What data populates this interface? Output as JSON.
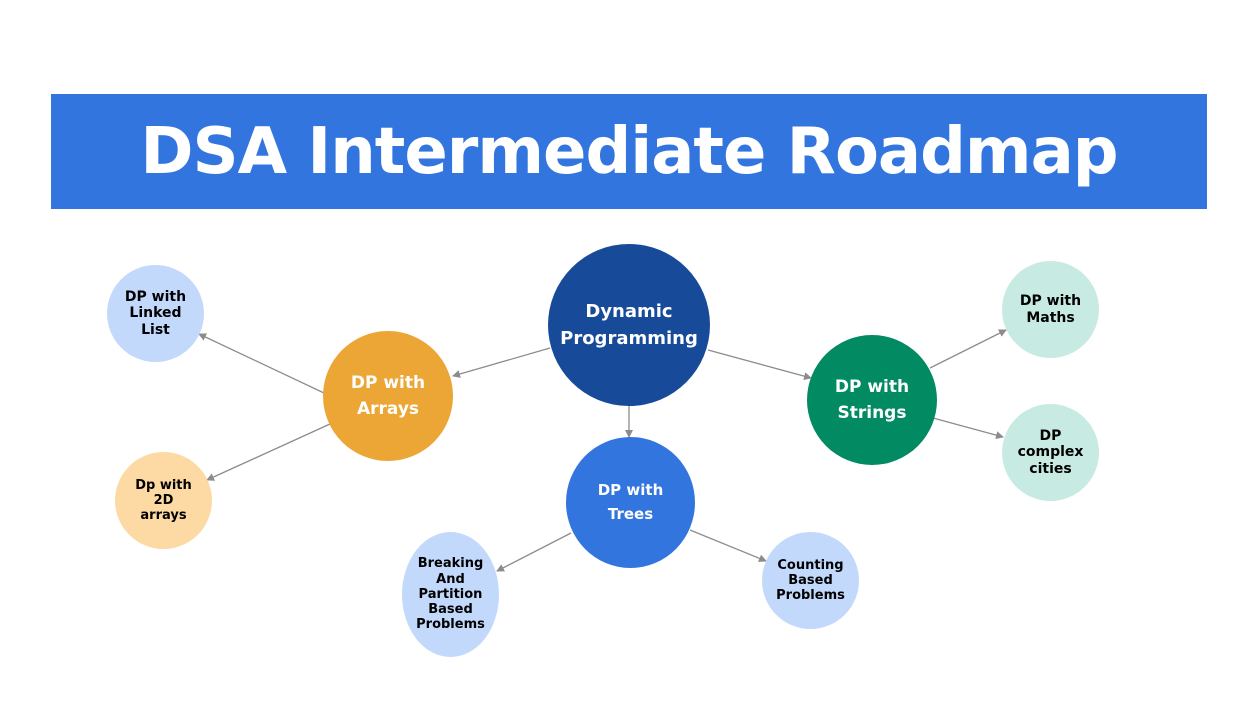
{
  "title": "DSA Intermediate Roadmap",
  "colors": {
    "banner": "#3375de",
    "main_node": "#174a98",
    "arrays_node": "#eca636",
    "strings_node": "#028b63",
    "trees_node": "#3375de",
    "light_blue_node": "#c2d9fc",
    "light_orange_node": "#fdd9a3",
    "light_green_node": "#c7ebe2",
    "edge": "#8c8c8c"
  },
  "nodes": {
    "main": "Dynamic Programming",
    "arrays": "DP with Arrays",
    "strings": "DP with Strings",
    "trees": "DP with Trees",
    "linked_list": "DP with Linked List",
    "two_d_arrays": "Dp with 2D arrays",
    "maths": "DP with Maths",
    "complexities": "DP complex cities",
    "breaking": "Breaking And Partition Based Problems",
    "counting": "Counting Based Problems"
  },
  "edges": [
    {
      "from": "main",
      "to": "arrays"
    },
    {
      "from": "main",
      "to": "strings"
    },
    {
      "from": "main",
      "to": "trees"
    },
    {
      "from": "arrays",
      "to": "linked_list"
    },
    {
      "from": "arrays",
      "to": "two_d_arrays"
    },
    {
      "from": "strings",
      "to": "maths"
    },
    {
      "from": "strings",
      "to": "complexities"
    },
    {
      "from": "trees",
      "to": "breaking"
    },
    {
      "from": "trees",
      "to": "counting"
    }
  ]
}
